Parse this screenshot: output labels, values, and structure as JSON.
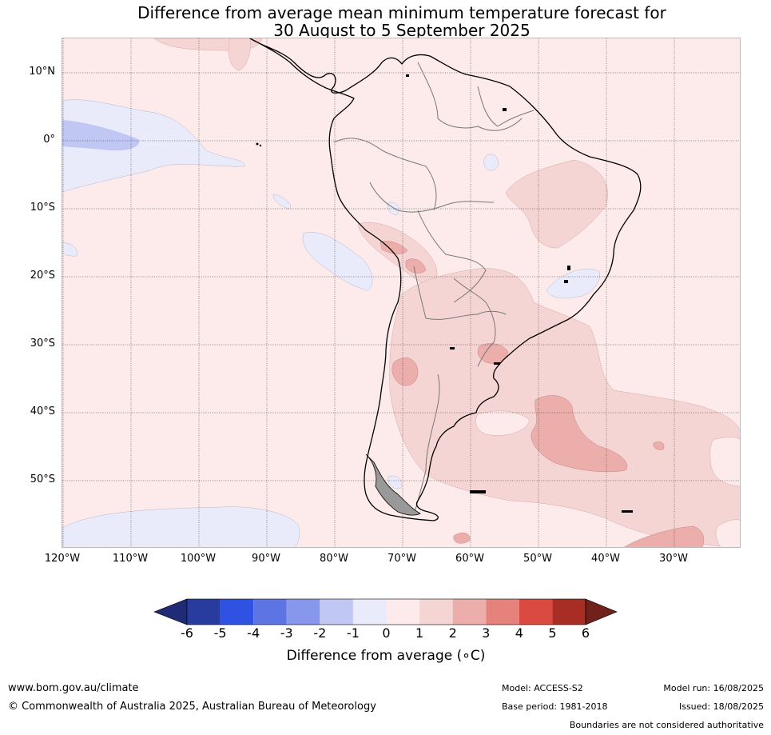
{
  "title": {
    "line1": "Difference from average mean minimum temperature forecast for",
    "line2": "30 August to 5 September 2025"
  },
  "latitude_labels": [
    "10°N",
    "0°",
    "10°S",
    "20°S",
    "30°S",
    "40°S",
    "50°S"
  ],
  "longitude_labels": [
    "120°W",
    "110°W",
    "100°W",
    "90°W",
    "80°W",
    "70°W",
    "60°W",
    "50°W",
    "40°W",
    "30°W"
  ],
  "colorbar": {
    "ticks": [
      "-6",
      "-5",
      "-4",
      "-3",
      "-2",
      "-1",
      "0",
      "1",
      "2",
      "3",
      "4",
      "5",
      "6"
    ],
    "colors": [
      "#283c9f",
      "#2f52e2",
      "#5c74e4",
      "#8697ec",
      "#c1c7f3",
      "#e9ebfb",
      "#fcebea",
      "#f5d5d3",
      "#ebaeab",
      "#e6827c",
      "#da4a40",
      "#a82e25"
    ],
    "under_color": "#1f2c75",
    "over_color": "#72201b",
    "label": "Difference from average (∘C)"
  },
  "footer": {
    "website": "www.bom.gov.au/climate",
    "copyright": "© Commonwealth of Australia 2025, Australian Bureau of Meteorology",
    "model": "Model: ACCESS-S2",
    "base_period": "Base period: 1981-2018",
    "model_run": "Model run: 16/08/2025",
    "issued": "Issued: 18/08/2025",
    "boundaries_note": "Boundaries are not considered authoritative"
  },
  "map_colors": {
    "ocean_default": "#fcebea",
    "coastline": "#000000",
    "borders": "#777777",
    "gridlines": "#333333"
  }
}
